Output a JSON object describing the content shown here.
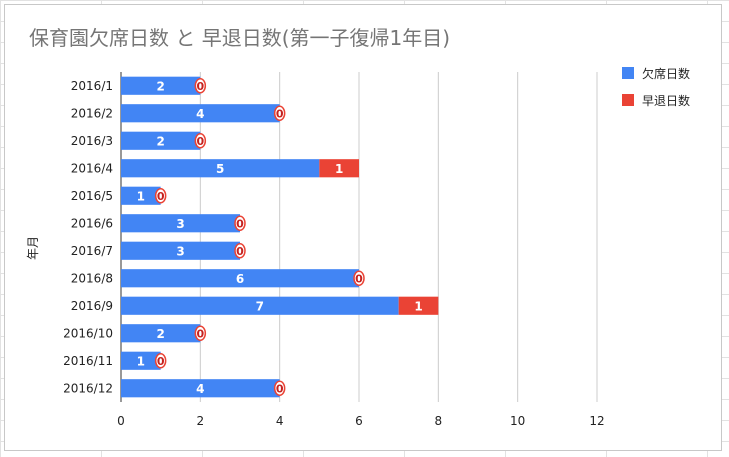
{
  "chart_data": {
    "type": "bar",
    "orientation": "horizontal",
    "stacked": true,
    "title": "保育園欠席日数 と 早退日数(第一子復帰1年目)",
    "ylabel": "年月",
    "xlabel": "",
    "categories": [
      "2016/1",
      "2016/2",
      "2016/3",
      "2016/4",
      "2016/5",
      "2016/6",
      "2016/7",
      "2016/8",
      "2016/9",
      "2016/10",
      "2016/11",
      "2016/12"
    ],
    "series": [
      {
        "name": "欠席日数",
        "color": "#4285f4",
        "values": [
          2,
          4,
          2,
          5,
          1,
          3,
          3,
          6,
          7,
          2,
          1,
          4
        ]
      },
      {
        "name": "早退日数",
        "color": "#ea4335",
        "values": [
          0,
          0,
          0,
          1,
          0,
          0,
          0,
          0,
          1,
          0,
          0,
          0
        ]
      }
    ],
    "xlim": [
      0,
      12
    ],
    "xticks": [
      0,
      2,
      4,
      6,
      8,
      10,
      12
    ],
    "grid": true,
    "legend": "top-right",
    "data_labels": true
  }
}
